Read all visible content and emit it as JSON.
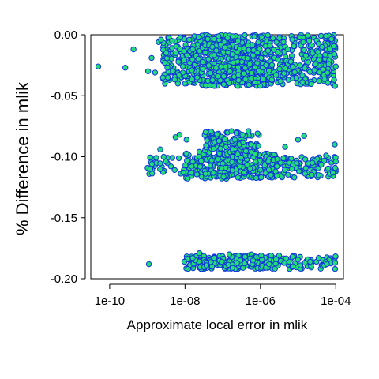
{
  "chart_data": {
    "type": "scatter",
    "title": "",
    "xlabel": "Approximate local error in mlik",
    "ylabel": "% Difference in mlik",
    "x_scale": "log10",
    "xlim": [
      3.16e-11,
      0.00016
    ],
    "ylim": [
      -0.2,
      0.0
    ],
    "x_ticks": [
      {
        "value": 1e-10,
        "label": "1e-10"
      },
      {
        "value": 1e-08,
        "label": "1e-08"
      },
      {
        "value": 1e-06,
        "label": "1e-06"
      },
      {
        "value": 0.0001,
        "label": "1e-04"
      }
    ],
    "y_ticks": [
      {
        "value": 0.0,
        "label": "0.00"
      },
      {
        "value": -0.05,
        "label": "-0.05"
      },
      {
        "value": -0.1,
        "label": "-0.10"
      },
      {
        "value": -0.15,
        "label": "-0.15"
      },
      {
        "value": -0.2,
        "label": "-0.20"
      }
    ],
    "grid": false,
    "marker": {
      "fill": "#22dd77",
      "stroke": "#1133dd",
      "shape": "circle"
    },
    "series": [
      {
        "points": [
          [
            5e-11,
            -0.026
          ],
          [
            2.6e-10,
            -0.027
          ],
          [
            4.3e-10,
            -0.012
          ],
          [
            1.05e-09,
            -0.03
          ],
          [
            1.3e-09,
            -0.019
          ],
          [
            1.6e-09,
            -0.031
          ],
          [
            2e-09,
            -0.006
          ],
          [
            2.3e-09,
            -0.004
          ],
          [
            2.9e-09,
            -0.023
          ],
          [
            3.4e-09,
            -0.027
          ],
          [
            4.5e-09,
            -0.005
          ],
          [
            5.8e-09,
            -0.015
          ],
          [
            6.5e-09,
            -0.04
          ],
          [
            7.5e-09,
            -0.002
          ],
          [
            8.8e-09,
            -0.031
          ],
          [
            1e-08,
            -0.04
          ],
          [
            1.3e-08,
            -0.004
          ],
          [
            1.6e-08,
            -0.012
          ],
          [
            2.1e-08,
            -0.035
          ],
          [
            3e-08,
            -0.028
          ],
          [
            4.2e-08,
            -0.02
          ],
          [
            6e-08,
            -0.042
          ],
          [
            8.8e-08,
            -0.008
          ],
          [
            1.2e-07,
            -0.026
          ],
          [
            1.8e-07,
            -0.016
          ],
          [
            2.6e-07,
            -0.033
          ],
          [
            3.7e-07,
            -0.011
          ],
          [
            5.2e-07,
            -0.024
          ],
          [
            7.1e-07,
            -0.039
          ],
          [
            1.05e-06,
            -0.019
          ],
          [
            1.6e-06,
            -0.013
          ],
          [
            2.6e-06,
            -0.033
          ],
          [
            4.1e-06,
            -0.006
          ],
          [
            6.4e-06,
            -0.022
          ],
          [
            1.1e-05,
            -0.002
          ],
          [
            1.6e-05,
            -0.017
          ],
          [
            2.7e-05,
            -0.029
          ],
          [
            4.3e-05,
            -0.01
          ],
          [
            6.5e-05,
            -0.024
          ],
          [
            9e-05,
            -0.037
          ],
          [
            9.5e-05,
            -0.042
          ],
          [
            0.0001,
            -0.026
          ],
          [
            9.2e-05,
            -0.016
          ],
          [
            1.2e-09,
            -0.11
          ],
          [
            2.2e-09,
            -0.094
          ],
          [
            3.1e-09,
            -0.104
          ],
          [
            4.6e-09,
            -0.101
          ],
          [
            5.6e-09,
            -0.084
          ],
          [
            7.2e-09,
            -0.082
          ],
          [
            9e-09,
            -0.113
          ],
          [
            1.1e-08,
            -0.086
          ],
          [
            1.5e-08,
            -0.108
          ],
          [
            2.4e-08,
            -0.096
          ],
          [
            3.5e-08,
            -0.114
          ],
          [
            5.1e-08,
            -0.103
          ],
          [
            8e-08,
            -0.087
          ],
          [
            1.2e-07,
            -0.109
          ],
          [
            1.7e-07,
            -0.079
          ],
          [
            2.5e-07,
            -0.098
          ],
          [
            3.6e-07,
            -0.113
          ],
          [
            5.6e-07,
            -0.09
          ],
          [
            8.4e-07,
            -0.081
          ],
          [
            1.3e-06,
            -0.107
          ],
          [
            1.9e-06,
            -0.115
          ],
          [
            2.8e-06,
            -0.102
          ],
          [
            4.5e-06,
            -0.092
          ],
          [
            6.8e-06,
            -0.11
          ],
          [
            1e-05,
            -0.086
          ],
          [
            1.45e-05,
            -0.083
          ],
          [
            2.4e-05,
            -0.105
          ],
          [
            3.5e-05,
            -0.115
          ],
          [
            5.5e-05,
            -0.099
          ],
          [
            8.4e-05,
            -0.113
          ],
          [
            9.4e-05,
            -0.09
          ],
          [
            0.0001,
            -0.104
          ],
          [
            1.1e-09,
            -0.188
          ],
          [
            9.6e-09,
            -0.186
          ],
          [
            1.6e-08,
            -0.183
          ],
          [
            2.4e-08,
            -0.179
          ],
          [
            3.7e-08,
            -0.189
          ],
          [
            6e-08,
            -0.183
          ],
          [
            9.5e-08,
            -0.186
          ],
          [
            1.5e-07,
            -0.18
          ],
          [
            2.4e-07,
            -0.187
          ],
          [
            3.9e-07,
            -0.182
          ],
          [
            6.4e-07,
            -0.185
          ],
          [
            1.05e-06,
            -0.181
          ],
          [
            1.7e-06,
            -0.188
          ],
          [
            2.6e-06,
            -0.184
          ],
          [
            4.3e-06,
            -0.187
          ],
          [
            7.1e-06,
            -0.182
          ],
          [
            1.15e-05,
            -0.189
          ],
          [
            2.1e-05,
            -0.186
          ],
          [
            3.5e-05,
            -0.183
          ],
          [
            5.8e-05,
            -0.188
          ],
          [
            9.6e-05,
            -0.187
          ]
        ],
        "clusters": [
          {
            "count": 560,
            "log10_x_range": [
              -7.8,
              -5.7
            ],
            "y_range": [
              -0.042,
              0.0
            ]
          },
          {
            "count": 230,
            "log10_x_range": [
              -5.7,
              -4.0
            ],
            "y_range": [
              -0.041,
              0.0
            ]
          },
          {
            "count": 130,
            "log10_x_range": [
              -8.6,
              -7.8
            ],
            "y_range": [
              -0.041,
              -0.002
            ]
          },
          {
            "count": 260,
            "log10_x_range": [
              -8.0,
              -5.6
            ],
            "y_range": [
              -0.118,
              -0.097
            ]
          },
          {
            "count": 110,
            "log10_x_range": [
              -7.5,
              -6.0
            ],
            "y_range": [
              -0.098,
              -0.079
            ]
          },
          {
            "count": 110,
            "log10_x_range": [
              -5.9,
              -4.0
            ],
            "y_range": [
              -0.117,
              -0.1
            ]
          },
          {
            "count": 25,
            "log10_x_range": [
              -9.0,
              -8.0
            ],
            "y_range": [
              -0.115,
              -0.1
            ]
          },
          {
            "count": 210,
            "log10_x_range": [
              -8.0,
              -5.6
            ],
            "y_range": [
              -0.192,
              -0.18
            ]
          },
          {
            "count": 50,
            "log10_x_range": [
              -5.6,
              -4.0
            ],
            "y_range": [
              -0.192,
              -0.181
            ]
          }
        ]
      }
    ]
  }
}
